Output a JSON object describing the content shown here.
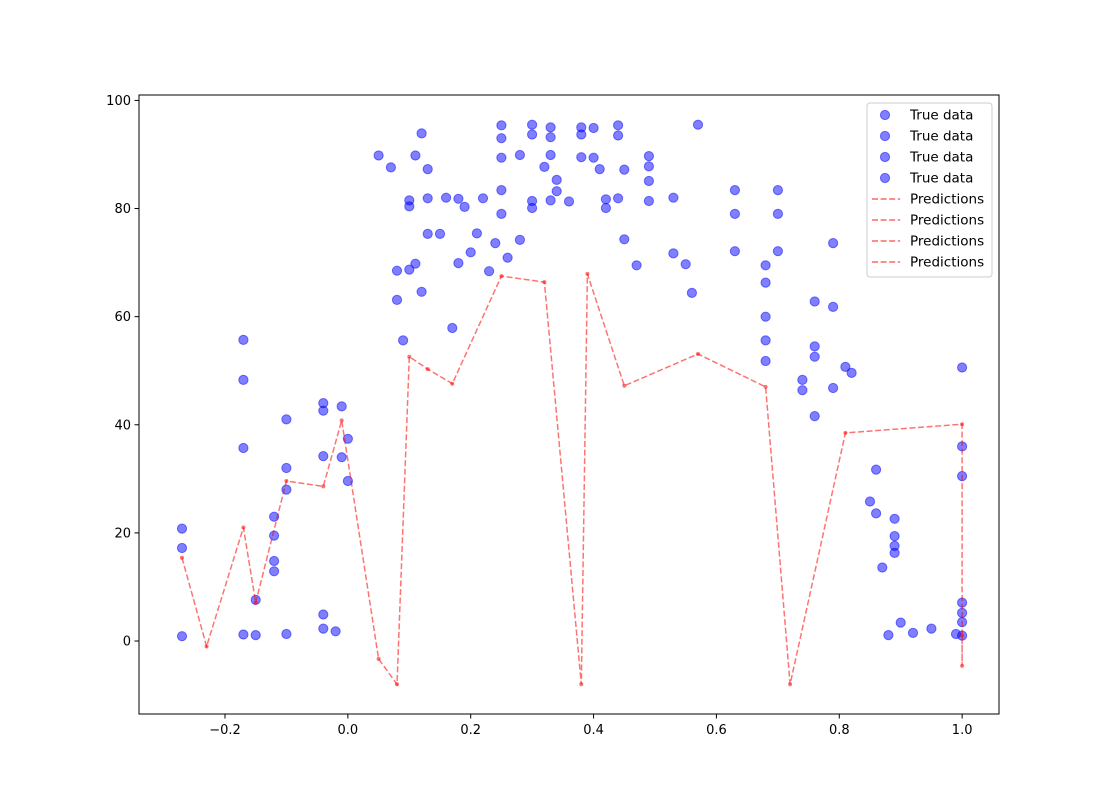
{
  "colors": {
    "true_data": "#0000ff",
    "predictions": "#ff0000",
    "axes": "#000000",
    "background": "#ffffff",
    "legend_border": "#cccccc"
  },
  "chart_data": {
    "type": "scatter",
    "title": "",
    "xlabel": "",
    "ylabel": "",
    "xlim": [
      -0.34,
      1.06
    ],
    "ylim": [
      -13.5,
      101
    ],
    "xticks": [
      "−0.2",
      "0.0",
      "0.2",
      "0.4",
      "0.6",
      "0.8",
      "1.0"
    ],
    "xtick_values": [
      -0.2,
      0.0,
      0.2,
      0.4,
      0.6,
      0.8,
      1.0
    ],
    "yticks": [
      "0",
      "20",
      "40",
      "60",
      "80",
      "100"
    ],
    "ytick_values": [
      0,
      20,
      40,
      60,
      80,
      100
    ],
    "grid": false,
    "legend_position": "top-right",
    "legend": [
      "True data",
      "True data",
      "True data",
      "True data",
      "Predictions",
      "Predictions",
      "Predictions",
      "Predictions"
    ],
    "series": [
      {
        "name": "True data",
        "style": "markers",
        "alpha": 0.5,
        "points": [
          [
            -0.27,
            0.9
          ],
          [
            -0.27,
            17.2
          ],
          [
            -0.27,
            20.8
          ],
          [
            -0.17,
            55.7
          ],
          [
            -0.17,
            48.3
          ],
          [
            -0.17,
            35.7
          ],
          [
            -0.17,
            1.2
          ],
          [
            -0.15,
            7.6
          ],
          [
            -0.15,
            1.1
          ],
          [
            -0.1,
            41.0
          ],
          [
            -0.1,
            32.0
          ],
          [
            -0.1,
            28.0
          ],
          [
            -0.1,
            1.3
          ],
          [
            -0.12,
            23.0
          ],
          [
            -0.12,
            19.5
          ],
          [
            -0.12,
            14.8
          ],
          [
            -0.12,
            12.9
          ],
          [
            -0.04,
            44.0
          ],
          [
            -0.04,
            42.6
          ],
          [
            -0.04,
            34.2
          ],
          [
            -0.04,
            4.9
          ],
          [
            -0.04,
            2.3
          ],
          [
            -0.01,
            43.4
          ],
          [
            -0.01,
            34.0
          ],
          [
            0.0,
            29.6
          ],
          [
            0.0,
            37.4
          ],
          [
            -0.02,
            1.8
          ],
          [
            0.05,
            89.8
          ],
          [
            0.07,
            87.6
          ],
          [
            0.08,
            68.5
          ],
          [
            0.08,
            63.1
          ],
          [
            0.09,
            55.6
          ],
          [
            0.1,
            81.5
          ],
          [
            0.1,
            80.4
          ],
          [
            0.1,
            68.7
          ],
          [
            0.11,
            89.8
          ],
          [
            0.11,
            69.8
          ],
          [
            0.12,
            93.9
          ],
          [
            0.13,
            87.3
          ],
          [
            0.13,
            81.9
          ],
          [
            0.13,
            75.3
          ],
          [
            0.12,
            64.6
          ],
          [
            0.15,
            75.3
          ],
          [
            0.16,
            82.0
          ],
          [
            0.17,
            57.9
          ],
          [
            0.18,
            81.8
          ],
          [
            0.18,
            69.9
          ],
          [
            0.19,
            80.3
          ],
          [
            0.2,
            71.9
          ],
          [
            0.21,
            75.4
          ],
          [
            0.22,
            81.9
          ],
          [
            0.23,
            68.4
          ],
          [
            0.24,
            73.6
          ],
          [
            0.25,
            93.0
          ],
          [
            0.25,
            95.4
          ],
          [
            0.25,
            89.4
          ],
          [
            0.25,
            83.4
          ],
          [
            0.25,
            79.0
          ],
          [
            0.26,
            70.9
          ],
          [
            0.28,
            89.9
          ],
          [
            0.28,
            74.2
          ],
          [
            0.3,
            95.5
          ],
          [
            0.3,
            93.7
          ],
          [
            0.3,
            81.4
          ],
          [
            0.3,
            80.1
          ],
          [
            0.32,
            87.7
          ],
          [
            0.33,
            95.0
          ],
          [
            0.33,
            93.2
          ],
          [
            0.33,
            89.9
          ],
          [
            0.34,
            85.3
          ],
          [
            0.34,
            83.2
          ],
          [
            0.33,
            81.5
          ],
          [
            0.36,
            81.3
          ],
          [
            0.38,
            95.0
          ],
          [
            0.38,
            93.7
          ],
          [
            0.38,
            89.5
          ],
          [
            0.4,
            94.9
          ],
          [
            0.4,
            89.4
          ],
          [
            0.41,
            87.3
          ],
          [
            0.42,
            81.7
          ],
          [
            0.42,
            80.1
          ],
          [
            0.44,
            95.4
          ],
          [
            0.44,
            93.5
          ],
          [
            0.45,
            87.2
          ],
          [
            0.44,
            81.9
          ],
          [
            0.45,
            74.3
          ],
          [
            0.47,
            69.5
          ],
          [
            0.49,
            89.7
          ],
          [
            0.49,
            87.8
          ],
          [
            0.49,
            85.1
          ],
          [
            0.49,
            81.4
          ],
          [
            0.53,
            82.0
          ],
          [
            0.53,
            71.7
          ],
          [
            0.55,
            69.7
          ],
          [
            0.56,
            64.4
          ],
          [
            0.57,
            95.5
          ],
          [
            0.63,
            83.4
          ],
          [
            0.63,
            79.0
          ],
          [
            0.63,
            72.1
          ],
          [
            0.68,
            69.5
          ],
          [
            0.68,
            66.3
          ],
          [
            0.7,
            83.4
          ],
          [
            0.7,
            79.0
          ],
          [
            0.7,
            72.1
          ],
          [
            0.68,
            60.0
          ],
          [
            0.68,
            55.6
          ],
          [
            0.68,
            51.8
          ],
          [
            0.76,
            62.8
          ],
          [
            0.76,
            54.5
          ],
          [
            0.76,
            52.6
          ],
          [
            0.79,
            73.6
          ],
          [
            0.79,
            61.8
          ],
          [
            0.79,
            46.8
          ],
          [
            0.81,
            50.7
          ],
          [
            0.82,
            49.6
          ],
          [
            0.74,
            48.3
          ],
          [
            0.74,
            46.4
          ],
          [
            0.76,
            41.6
          ],
          [
            1.0,
            50.6
          ],
          [
            1.0,
            36.0
          ],
          [
            1.0,
            30.5
          ],
          [
            0.89,
            22.6
          ],
          [
            0.89,
            19.4
          ],
          [
            0.89,
            17.6
          ],
          [
            0.89,
            16.3
          ],
          [
            0.87,
            13.6
          ],
          [
            0.86,
            31.7
          ],
          [
            0.85,
            25.8
          ],
          [
            0.86,
            23.6
          ],
          [
            1.0,
            7.1
          ],
          [
            1.0,
            5.2
          ],
          [
            1.0,
            3.5
          ],
          [
            1.0,
            1.0
          ],
          [
            0.99,
            1.3
          ],
          [
            0.95,
            2.3
          ],
          [
            0.92,
            1.5
          ],
          [
            0.9,
            3.4
          ],
          [
            0.88,
            1.1
          ]
        ]
      },
      {
        "name": "Predictions",
        "style": "dashed",
        "alpha": 0.55,
        "points": [
          [
            -0.27,
            15.4
          ],
          [
            -0.23,
            -1.0
          ],
          [
            -0.17,
            21.0
          ],
          [
            -0.15,
            7.1
          ],
          [
            -0.1,
            29.6
          ],
          [
            -0.04,
            28.6
          ],
          [
            -0.01,
            40.8
          ],
          [
            0.05,
            -3.3
          ],
          [
            0.08,
            -8.0
          ],
          [
            0.1,
            52.6
          ],
          [
            0.13,
            50.3
          ],
          [
            0.17,
            47.6
          ],
          [
            0.25,
            67.5
          ],
          [
            0.32,
            66.4
          ],
          [
            0.38,
            -8.0
          ],
          [
            0.39,
            67.9
          ],
          [
            0.45,
            47.2
          ],
          [
            0.57,
            53.1
          ],
          [
            0.68,
            47.0
          ],
          [
            0.72,
            -8.0
          ],
          [
            0.81,
            38.5
          ],
          [
            1.0,
            40.1
          ],
          [
            1.0,
            -4.6
          ],
          [
            1.0,
            1.0
          ]
        ]
      }
    ]
  }
}
